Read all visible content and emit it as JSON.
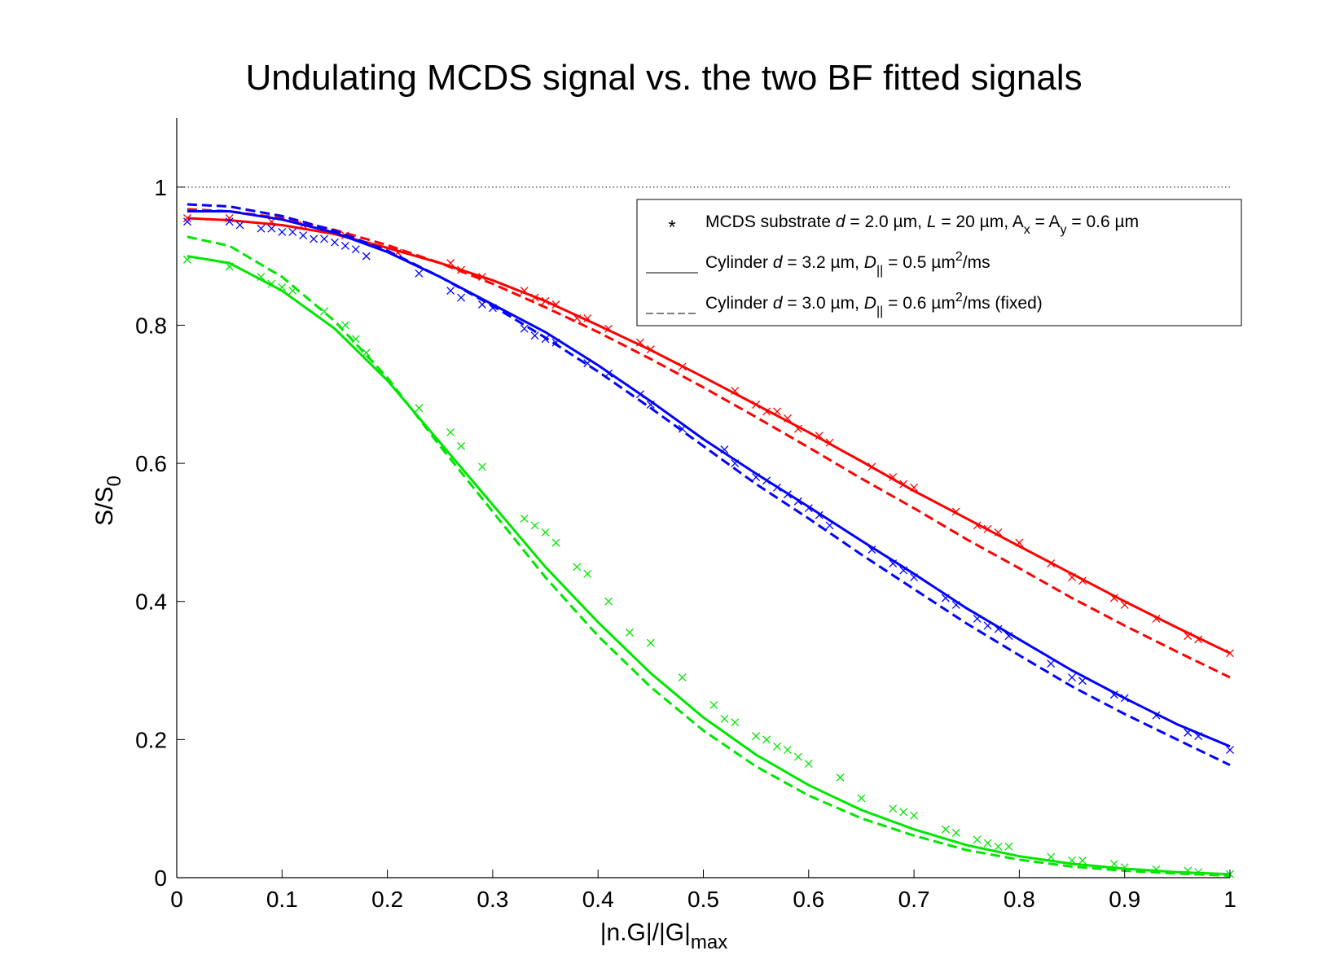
{
  "chart_data": {
    "type": "line",
    "title": "Undulating MCDS signal vs. the two BF fitted signals",
    "xlabel": "|n.G|/|G|",
    "xlabel_sub": "max",
    "ylabel": "S/S",
    "ylabel_sub": "0",
    "xlim": [
      0,
      1
    ],
    "ylim": [
      0,
      1.1
    ],
    "x_ticks": [
      "0",
      "0.1",
      "0.2",
      "0.3",
      "0.4",
      "0.5",
      "0.6",
      "0.7",
      "0.8",
      "0.9",
      "1"
    ],
    "y_ticks": [
      "0",
      "0.2",
      "0.4",
      "0.6",
      "0.8",
      "1"
    ],
    "reference_line": {
      "y": 1,
      "style": "dotted",
      "color": "#000000"
    },
    "grid": false,
    "legend_position": "top-right",
    "legend": [
      {
        "marker": "*",
        "style": "marker",
        "parts": [
          {
            "t": "MCDS substrate "
          },
          {
            "t": "d",
            "italic": true
          },
          {
            "t": " = 2.0 µm, "
          },
          {
            "t": "L",
            "italic": true
          },
          {
            "t": " = 20 µm, A"
          },
          {
            "t": "x",
            "sub": true
          },
          {
            "t": " = A"
          },
          {
            "t": "y",
            "sub": true
          },
          {
            "t": " = 0.6 µm"
          }
        ]
      },
      {
        "style": "solid",
        "parts": [
          {
            "t": "Cylinder "
          },
          {
            "t": "d",
            "italic": true
          },
          {
            "t": " = 3.2 µm, "
          },
          {
            "t": "D",
            "italic": true
          },
          {
            "t": "||",
            "sub": true
          },
          {
            "t": " = 0.5 µm"
          },
          {
            "t": "2",
            "sup": true
          },
          {
            "t": "/ms"
          }
        ]
      },
      {
        "style": "dashed",
        "parts": [
          {
            "t": "Cylinder "
          },
          {
            "t": "d",
            "italic": true
          },
          {
            "t": " = 3.0 µm, "
          },
          {
            "t": "D",
            "italic": true
          },
          {
            "t": "||",
            "sub": true
          },
          {
            "t": " = 0.6 µm"
          },
          {
            "t": "2",
            "sup": true
          },
          {
            "t": "/ms (fixed)"
          }
        ]
      }
    ],
    "series": [
      {
        "color": "#ff0000",
        "x": [
          0.01,
          0.05,
          0.1,
          0.15,
          0.2,
          0.25,
          0.3,
          0.35,
          0.4,
          0.45,
          0.5,
          0.55,
          0.6,
          0.65,
          0.7,
          0.75,
          0.8,
          0.85,
          0.9,
          0.95,
          1.0
        ],
        "fit_solid": [
          0.955,
          0.952,
          0.945,
          0.932,
          0.912,
          0.89,
          0.865,
          0.835,
          0.8,
          0.764,
          0.725,
          0.685,
          0.645,
          0.603,
          0.56,
          0.52,
          0.48,
          0.44,
          0.4,
          0.362,
          0.325
        ],
        "fit_dashed": [
          0.968,
          0.965,
          0.955,
          0.938,
          0.916,
          0.89,
          0.86,
          0.826,
          0.79,
          0.751,
          0.71,
          0.667,
          0.623,
          0.578,
          0.535,
          0.49,
          0.448,
          0.405,
          0.365,
          0.327,
          0.29
        ],
        "mcds_x": [
          0.01,
          0.05,
          0.09,
          0.12,
          0.16,
          0.21,
          0.26,
          0.27,
          0.29,
          0.33,
          0.34,
          0.35,
          0.36,
          0.38,
          0.39,
          0.41,
          0.44,
          0.45,
          0.48,
          0.53,
          0.55,
          0.56,
          0.57,
          0.58,
          0.59,
          0.61,
          0.62,
          0.66,
          0.68,
          0.69,
          0.7,
          0.74,
          0.76,
          0.77,
          0.78,
          0.8,
          0.83,
          0.85,
          0.86,
          0.89,
          0.9,
          0.93,
          0.96,
          0.97,
          1.0
        ],
        "mcds_y": [
          0.955,
          0.955,
          0.95,
          0.945,
          0.93,
          0.905,
          0.89,
          0.88,
          0.87,
          0.85,
          0.84,
          0.835,
          0.83,
          0.81,
          0.81,
          0.795,
          0.775,
          0.765,
          0.74,
          0.705,
          0.685,
          0.675,
          0.675,
          0.665,
          0.65,
          0.64,
          0.63,
          0.595,
          0.58,
          0.57,
          0.565,
          0.53,
          0.51,
          0.505,
          0.5,
          0.485,
          0.455,
          0.435,
          0.43,
          0.405,
          0.395,
          0.375,
          0.35,
          0.345,
          0.325
        ]
      },
      {
        "color": "#0000ff",
        "x": [
          0.01,
          0.05,
          0.1,
          0.15,
          0.2,
          0.25,
          0.3,
          0.35,
          0.4,
          0.45,
          0.5,
          0.55,
          0.6,
          0.65,
          0.7,
          0.75,
          0.8,
          0.85,
          0.9,
          0.95,
          1.0
        ],
        "fit_solid": [
          0.965,
          0.965,
          0.953,
          0.934,
          0.906,
          0.87,
          0.83,
          0.79,
          0.742,
          0.69,
          0.635,
          0.585,
          0.537,
          0.488,
          0.44,
          0.39,
          0.345,
          0.3,
          0.26,
          0.222,
          0.19
        ],
        "fit_dashed": [
          0.975,
          0.972,
          0.958,
          0.937,
          0.908,
          0.87,
          0.828,
          0.782,
          0.733,
          0.68,
          0.625,
          0.57,
          0.52,
          0.468,
          0.418,
          0.368,
          0.322,
          0.277,
          0.237,
          0.2,
          0.163
        ],
        "mcds_x": [
          0.01,
          0.05,
          0.06,
          0.08,
          0.09,
          0.1,
          0.11,
          0.12,
          0.13,
          0.14,
          0.15,
          0.16,
          0.17,
          0.18,
          0.23,
          0.26,
          0.27,
          0.29,
          0.3,
          0.33,
          0.34,
          0.35,
          0.36,
          0.39,
          0.41,
          0.44,
          0.45,
          0.48,
          0.52,
          0.53,
          0.55,
          0.56,
          0.57,
          0.58,
          0.59,
          0.6,
          0.61,
          0.62,
          0.66,
          0.68,
          0.69,
          0.7,
          0.73,
          0.74,
          0.76,
          0.77,
          0.78,
          0.79,
          0.83,
          0.85,
          0.86,
          0.89,
          0.9,
          0.93,
          0.96,
          0.97,
          1.0
        ],
        "mcds_y": [
          0.95,
          0.95,
          0.945,
          0.94,
          0.94,
          0.935,
          0.935,
          0.93,
          0.925,
          0.925,
          0.92,
          0.915,
          0.91,
          0.9,
          0.875,
          0.85,
          0.84,
          0.83,
          0.825,
          0.795,
          0.785,
          0.78,
          0.775,
          0.745,
          0.73,
          0.7,
          0.685,
          0.65,
          0.62,
          0.6,
          0.58,
          0.575,
          0.565,
          0.555,
          0.545,
          0.535,
          0.525,
          0.51,
          0.475,
          0.455,
          0.445,
          0.435,
          0.405,
          0.395,
          0.375,
          0.365,
          0.36,
          0.35,
          0.31,
          0.29,
          0.285,
          0.265,
          0.26,
          0.235,
          0.21,
          0.205,
          0.185
        ]
      },
      {
        "color": "#00e600",
        "x": [
          0.01,
          0.05,
          0.1,
          0.15,
          0.2,
          0.25,
          0.3,
          0.35,
          0.4,
          0.45,
          0.5,
          0.55,
          0.6,
          0.65,
          0.7,
          0.75,
          0.8,
          0.85,
          0.9,
          0.95,
          1.0
        ],
        "fit_solid": [
          0.9,
          0.89,
          0.85,
          0.795,
          0.72,
          0.63,
          0.54,
          0.45,
          0.37,
          0.296,
          0.232,
          0.178,
          0.134,
          0.098,
          0.07,
          0.047,
          0.031,
          0.02,
          0.013,
          0.008,
          0.005
        ],
        "fit_dashed": [
          0.928,
          0.915,
          0.87,
          0.806,
          0.724,
          0.625,
          0.53,
          0.435,
          0.35,
          0.276,
          0.213,
          0.161,
          0.119,
          0.086,
          0.061,
          0.04,
          0.026,
          0.016,
          0.01,
          0.006,
          0.003
        ],
        "mcds_x": [
          0.01,
          0.05,
          0.08,
          0.09,
          0.1,
          0.11,
          0.14,
          0.16,
          0.17,
          0.18,
          0.23,
          0.26,
          0.27,
          0.29,
          0.33,
          0.34,
          0.35,
          0.36,
          0.38,
          0.39,
          0.41,
          0.43,
          0.45,
          0.48,
          0.51,
          0.52,
          0.53,
          0.55,
          0.56,
          0.57,
          0.58,
          0.59,
          0.6,
          0.63,
          0.65,
          0.68,
          0.69,
          0.7,
          0.73,
          0.74,
          0.76,
          0.77,
          0.78,
          0.79,
          0.83,
          0.85,
          0.86,
          0.89,
          0.9,
          0.93,
          0.96,
          0.97,
          1.0
        ],
        "mcds_y": [
          0.895,
          0.885,
          0.87,
          0.86,
          0.855,
          0.85,
          0.82,
          0.8,
          0.78,
          0.76,
          0.68,
          0.645,
          0.625,
          0.595,
          0.52,
          0.51,
          0.5,
          0.485,
          0.45,
          0.44,
          0.4,
          0.355,
          0.34,
          0.29,
          0.25,
          0.23,
          0.225,
          0.205,
          0.2,
          0.19,
          0.185,
          0.175,
          0.165,
          0.145,
          0.115,
          0.1,
          0.095,
          0.09,
          0.07,
          0.065,
          0.055,
          0.05,
          0.045,
          0.045,
          0.03,
          0.025,
          0.025,
          0.02,
          0.015,
          0.012,
          0.01,
          0.008,
          0.005
        ]
      }
    ]
  }
}
